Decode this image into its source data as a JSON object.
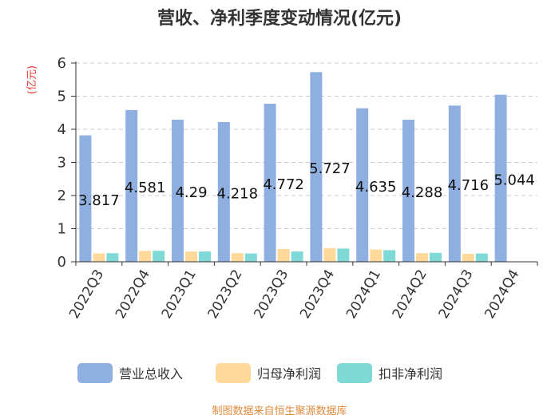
{
  "chart_data": {
    "type": "bar",
    "title": "营收、净利季度变动情况(亿元)",
    "ylabel": "(亿元)",
    "xlabel": "",
    "ylim": [
      0,
      6
    ],
    "yticks": [
      0,
      1,
      2,
      3,
      4,
      5,
      6
    ],
    "grid": true,
    "legend_position": "bottom",
    "categories": [
      "2022Q3",
      "2022Q4",
      "2023Q1",
      "2023Q2",
      "2023Q3",
      "2023Q4",
      "2024Q1",
      "2024Q2",
      "2024Q3",
      "2024Q4"
    ],
    "series": [
      {
        "name": "营业总收入",
        "color": "#8fafe0",
        "values": [
          3.817,
          4.581,
          4.29,
          4.218,
          4.772,
          5.727,
          4.635,
          4.288,
          4.716,
          5.044
        ],
        "labels": [
          "3.817",
          "4.581",
          "4.29",
          "4.218",
          "4.772",
          "5.727",
          "4.635",
          "4.288",
          "4.716",
          "5.044"
        ]
      },
      {
        "name": "归母净利润",
        "color": "#ffd99a",
        "values": [
          0.25,
          0.33,
          0.31,
          0.26,
          0.39,
          0.41,
          0.37,
          0.26,
          0.24,
          0.0
        ]
      },
      {
        "name": "扣非净利润",
        "color": "#7fd9d6",
        "values": [
          0.26,
          0.33,
          0.31,
          0.25,
          0.31,
          0.4,
          0.35,
          0.27,
          0.25,
          0.0
        ]
      }
    ]
  },
  "footer": {
    "source": "制图数据来自恒生聚源数据库"
  }
}
